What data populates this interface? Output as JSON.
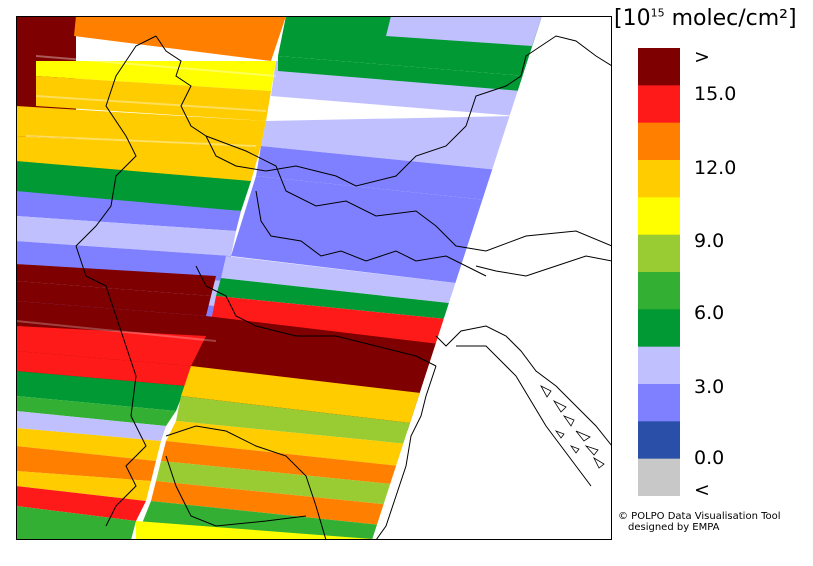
{
  "legend": {
    "title_prefix": "[10",
    "title_exp": "15",
    "title_suffix": " molec/cm²]",
    "labels": [
      ">",
      "15.0",
      "12.0",
      "9.0",
      "6.0",
      "3.0",
      "0.0",
      "<"
    ],
    "colors": [
      "#7f0000",
      "#ff1a1a",
      "#ff8000",
      "#ffcc00",
      "#ffff00",
      "#99cc33",
      "#33b033",
      "#009933",
      "#c0c0ff",
      "#7f80ff",
      "#2a4fa8",
      "#c8c8c8"
    ]
  },
  "credit": {
    "line1": "© POLPO Data Visualisation Tool",
    "line2": "designed by EMPA"
  }
}
